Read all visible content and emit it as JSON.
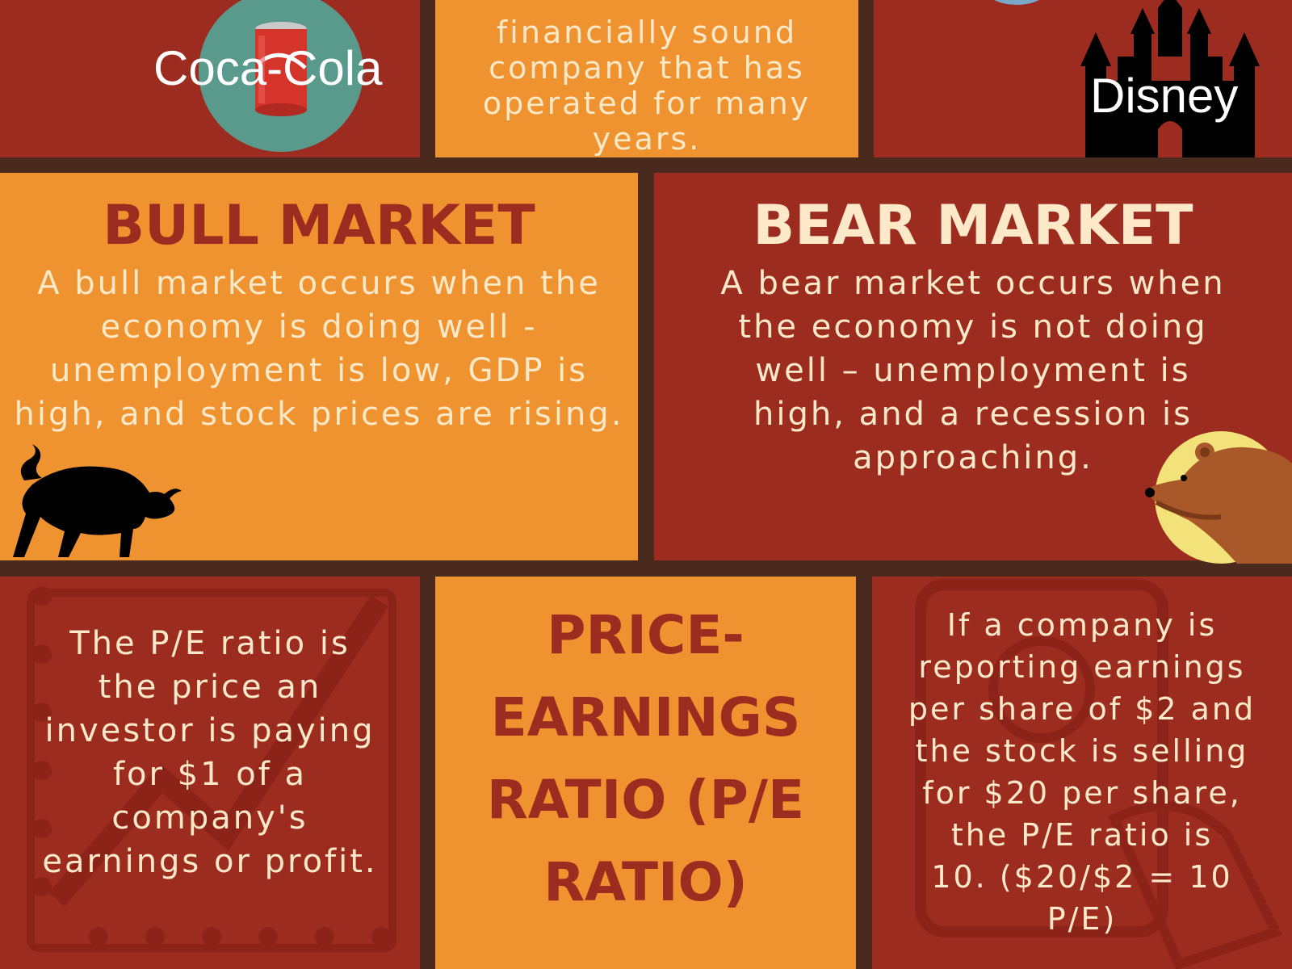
{
  "row1": {
    "coke_label": "Coca-Cola",
    "sound_text": "financially sound\ncompany that has\noperated for many\nyears.",
    "disney_label": "Disney"
  },
  "bull": {
    "title": "BULL MARKET",
    "text": "A bull market occurs when the\neconomy is doing well -\nunemployment is low, GDP is\nhigh, and stock prices are rising."
  },
  "bear": {
    "title": "BEAR MARKET",
    "text": "A bear market occurs when\nthe economy is not doing\nwell – unemployment is\nhigh, and a recession is\napproaching."
  },
  "pe": {
    "definition": "The P/E ratio is\nthe price an\ninvestor is paying\nfor $1 of a\ncompany's\nearnings or profit.",
    "title": "PRICE-\nEARNINGS\nRATIO (P/E\nRATIO)",
    "example": "If a company is\nreporting earnings\nper share of $2 and\nthe stock is selling\nfor $20 per share,\nthe P/E ratio is\n10. ($20/$2 = 10\nP/E)"
  },
  "colors": {
    "red": "#9c2c20",
    "orange": "#ef9230",
    "cream": "#fde9c7",
    "divider": "#4a2a1c"
  },
  "icons": [
    "coca-cola-can-icon",
    "globe-icon",
    "castle-icon",
    "bull-icon",
    "bear-icon",
    "chart-background-icon",
    "hand-money-background-icon"
  ]
}
